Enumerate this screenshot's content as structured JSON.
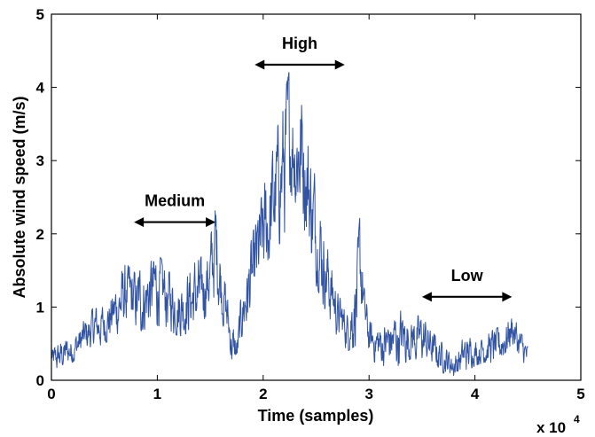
{
  "chart_data": {
    "type": "line",
    "title": "",
    "xlabel": "Time (samples)",
    "ylabel": "Absolute wind speed (m/s)",
    "x_multiplier_label": "x 10",
    "x_multiplier_exponent": "4",
    "xlim": [
      0,
      5
    ],
    "ylim": [
      0,
      5
    ],
    "xticks": [
      0,
      1,
      2,
      3,
      4,
      5
    ],
    "yticks": [
      0,
      1,
      2,
      3,
      4,
      5
    ],
    "xtick_labels": [
      "0",
      "1",
      "2",
      "3",
      "4",
      "5"
    ],
    "ytick_labels": [
      "0",
      "1",
      "2",
      "3",
      "4",
      "5"
    ],
    "grid": false,
    "line_color": "#3153a4",
    "annotations": [
      {
        "label": "Medium",
        "x_start": 0.78,
        "x_end": 1.55,
        "y": 2.16
      },
      {
        "label": "High",
        "x_start": 1.92,
        "x_end": 2.77,
        "y": 4.31
      },
      {
        "label": "Low",
        "x_start": 3.5,
        "x_end": 4.35,
        "y": 1.14
      }
    ],
    "series": [
      {
        "x_range": [
          0,
          4.5
        ],
        "envelope": {
          "x": [
            0.0,
            0.1,
            0.2,
            0.3,
            0.4,
            0.5,
            0.6,
            0.7,
            0.8,
            0.9,
            1.0,
            1.1,
            1.2,
            1.3,
            1.4,
            1.5,
            1.55,
            1.6,
            1.7,
            1.75,
            1.8,
            1.9,
            2.0,
            2.1,
            2.2,
            2.25,
            2.3,
            2.35,
            2.4,
            2.45,
            2.5,
            2.6,
            2.7,
            2.8,
            2.9,
            2.92,
            2.95,
            3.0,
            3.1,
            3.2,
            3.3,
            3.4,
            3.5,
            3.6,
            3.7,
            3.8,
            3.9,
            4.0,
            4.1,
            4.2,
            4.3,
            4.35,
            4.4,
            4.5
          ],
          "y_low": [
            0.1,
            0.15,
            0.25,
            0.35,
            0.45,
            0.5,
            0.6,
            0.75,
            0.65,
            0.7,
            0.75,
            0.7,
            0.6,
            0.65,
            0.7,
            1.0,
            1.2,
            0.9,
            0.2,
            0.15,
            0.6,
            0.9,
            1.3,
            1.7,
            2.0,
            2.6,
            2.4,
            2.3,
            2.0,
            1.6,
            1.3,
            0.9,
            0.6,
            0.4,
            0.5,
            0.9,
            0.6,
            0.3,
            0.2,
            0.2,
            0.2,
            0.3,
            0.25,
            0.2,
            0.1,
            0.05,
            0.1,
            0.2,
            0.25,
            0.2,
            0.35,
            0.5,
            0.3,
            0.15
          ],
          "y_high": [
            0.4,
            0.55,
            0.6,
            0.8,
            1.0,
            1.0,
            1.3,
            1.6,
            1.45,
            1.6,
            1.75,
            1.5,
            1.35,
            1.55,
            1.65,
            1.9,
            2.5,
            1.75,
            0.75,
            0.6,
            1.3,
            2.0,
            2.6,
            3.2,
            3.9,
            4.25,
            3.8,
            4.1,
            3.7,
            3.1,
            2.7,
            1.9,
            1.2,
            0.9,
            2.0,
            2.35,
            1.3,
            0.8,
            0.75,
            0.85,
            0.95,
            0.85,
            0.9,
            0.65,
            0.5,
            0.35,
            0.6,
            0.55,
            0.65,
            0.7,
            0.85,
            0.95,
            0.75,
            0.45
          ]
        }
      }
    ]
  }
}
